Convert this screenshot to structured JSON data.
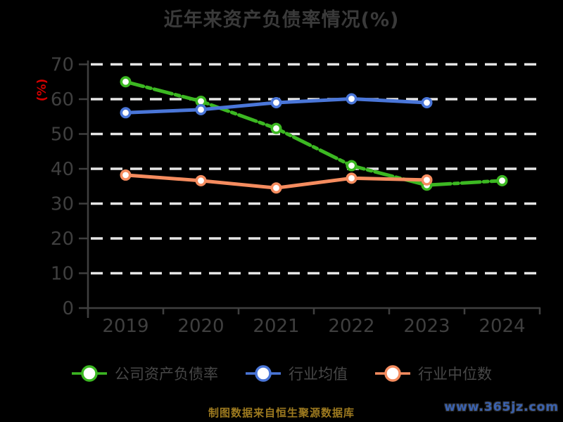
{
  "title": "近年来资产负债率情况(%)",
  "y_axis_label": "(%)",
  "chart_data": {
    "type": "line",
    "title": "近年来资产负债率情况(%)",
    "ylabel": "(%)",
    "categories": [
      "2019",
      "2020",
      "2021",
      "2022",
      "2023",
      "2024"
    ],
    "series": [
      {
        "name": "公司资产负债率",
        "color": "#3cb822",
        "line_style": "dashdot",
        "marker": "circle-white-fill",
        "values": [
          65.0,
          59.4,
          51.6,
          40.9,
          35.3,
          36.6
        ]
      },
      {
        "name": "行业均值",
        "color": "#4a76d8",
        "line_style": "solid",
        "marker": "circle-white-fill",
        "values": [
          56.1,
          57.0,
          59.0,
          60.1,
          59.0,
          null
        ]
      },
      {
        "name": "行业中位数",
        "color": "#f58c5f",
        "line_style": "solid",
        "marker": "circle-white-fill",
        "values": [
          38.2,
          36.6,
          34.5,
          37.3,
          36.8,
          null
        ]
      }
    ],
    "ylim": [
      0,
      70
    ],
    "yticks": [
      0,
      10,
      20,
      30,
      40,
      50,
      60,
      70
    ],
    "grid": "horizontal-dashed-white",
    "legend_position": "bottom"
  },
  "legend": {
    "items": [
      {
        "label": "公司资产负债率",
        "color": "#3cb822"
      },
      {
        "label": "行业均值",
        "color": "#4a76d8"
      },
      {
        "label": "行业中位数",
        "color": "#f58c5f"
      }
    ]
  },
  "footer": {
    "source_note": "制图数据来自恒生聚源数据库",
    "watermark": "www.365jz.com"
  },
  "colors": {
    "background": "#000000",
    "grid": "#e6e6e6",
    "axis": "#3f3f3f",
    "tick_label": "#3f3f3f",
    "title": "#3a3a3a",
    "ylabel": "#d40000",
    "legend_text": "#474747",
    "footer_text": "#9d7a1f",
    "watermark": "#3a62b0",
    "series_green": "#3cb822",
    "series_blue": "#4a76d8",
    "series_orange": "#f58c5f"
  }
}
